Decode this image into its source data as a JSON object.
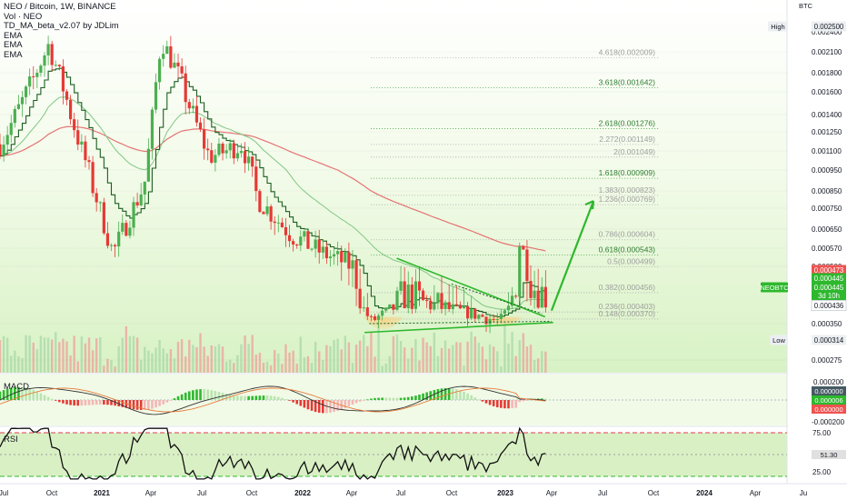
{
  "header": {
    "symbol_line": "NEO / Bitcoin, 1W, BINANCE",
    "indicators": [
      "Vol · NEO",
      "TD_MA_beta_v2.07 by JDLim",
      "EMA",
      "EMA",
      "EMA"
    ]
  },
  "price_axis": {
    "unit": "BTC",
    "ticks": [
      "0.002500",
      "0.002400",
      "0.002100",
      "0.001800",
      "0.001600",
      "0.001400",
      "0.001250",
      "0.001100",
      "0.000950",
      "0.000850",
      "0.000750",
      "0.000650",
      "0.000570",
      "0.000500",
      "0.000436",
      "0.000350",
      "0.000275"
    ],
    "badges": [
      {
        "label": "High",
        "value": "0.002500"
      },
      {
        "label": "",
        "value": "0.000473"
      },
      {
        "label": "",
        "value": "0.000445"
      },
      {
        "label": "NEOBTC",
        "value": "0.000445"
      },
      {
        "label": "",
        "value": "3d 10h"
      },
      {
        "label": "Low",
        "value": "0.000314"
      }
    ]
  },
  "fib_levels": [
    {
      "label": "4.618(0.002009)",
      "color": "#aaaaaa"
    },
    {
      "label": "3.618(0.001642)",
      "color": "#43a047"
    },
    {
      "label": "2.618(0.001276)",
      "color": "#43a047"
    },
    {
      "label": "2.272(0.001149)",
      "color": "#aaaaaa"
    },
    {
      "label": "2(0.001049)",
      "color": "#aaaaaa"
    },
    {
      "label": "1.618(0.000909)",
      "color": "#43a047"
    },
    {
      "label": "1.383(0.000823)",
      "color": "#aaaaaa"
    },
    {
      "label": "1.236(0.000769)",
      "color": "#aaaaaa"
    },
    {
      "label": "0.786(0.000604)",
      "color": "#aaaaaa"
    },
    {
      "label": "0.618(0.000543)",
      "color": "#43a047"
    },
    {
      "label": "0.5(0.000499)",
      "color": "#aaaaaa"
    },
    {
      "label": "0.382(0.000456)",
      "color": "#aaaaaa"
    },
    {
      "label": "0.236(0.000403)",
      "color": "#aaaaaa"
    },
    {
      "label": "0.148(0.000370)",
      "color": "#aaaaaa"
    }
  ],
  "macd": {
    "title": "MACD",
    "ticks": [
      "0.000200",
      "-0.000200"
    ],
    "badges": [
      "0.000000",
      "0.000006",
      "0.000000"
    ]
  },
  "rsi": {
    "title": "RSI",
    "ticks": [
      "75.00",
      "25.00"
    ],
    "badge": "51.30"
  },
  "time_axis": [
    "Jul",
    "Oct",
    "2021",
    "Apr",
    "Jul",
    "Oct",
    "2022",
    "Apr",
    "Jul",
    "Oct",
    "2023",
    "Apr",
    "Jul",
    "Oct",
    "2024",
    "Apr",
    "Ju"
  ],
  "colors": {
    "up": "#26a69a",
    "down": "#ef5350",
    "candle_up": "#4caf50",
    "candle_down": "#e53935",
    "fib_green": "#43a047",
    "arrow": "#2eb82e",
    "ema_red": "#e57373",
    "ema_green": "#81c784"
  },
  "chart_data": {
    "type": "candlestick",
    "title": "NEO / Bitcoin, 1W, BINANCE",
    "ylabel": "BTC",
    "y_scale": "log",
    "ylim": [
      0.000275,
      0.0025
    ],
    "x_range": [
      "2020-06",
      "2024-06"
    ],
    "price_path": [
      {
        "x": "2020-06",
        "y": 0.00115
      },
      {
        "x": "2020-08",
        "y": 0.0017
      },
      {
        "x": "2020-09",
        "y": 0.0022
      },
      {
        "x": "2020-10",
        "y": 0.0016
      },
      {
        "x": "2020-12",
        "y": 0.0008
      },
      {
        "x": "2021-01",
        "y": 0.00055
      },
      {
        "x": "2021-03",
        "y": 0.0009
      },
      {
        "x": "2021-04",
        "y": 0.0023
      },
      {
        "x": "2021-05",
        "y": 0.0018
      },
      {
        "x": "2021-07",
        "y": 0.00105
      },
      {
        "x": "2021-09",
        "y": 0.00115
      },
      {
        "x": "2021-10",
        "y": 0.0008
      },
      {
        "x": "2021-12",
        "y": 0.00063
      },
      {
        "x": "2022-02",
        "y": 0.00055
      },
      {
        "x": "2022-04",
        "y": 0.0005
      },
      {
        "x": "2022-05",
        "y": 0.00036
      },
      {
        "x": "2022-07",
        "y": 0.00045
      },
      {
        "x": "2022-09",
        "y": 0.00043
      },
      {
        "x": "2022-11",
        "y": 0.0004
      },
      {
        "x": "2023-01",
        "y": 0.00036
      },
      {
        "x": "2023-02",
        "y": 0.00048
      },
      {
        "x": "2023-02",
        "y": 0.00063
      },
      {
        "x": "2023-03",
        "y": 0.00047
      },
      {
        "x": "2023-04",
        "y": 0.000445
      }
    ],
    "fibonacci": [
      {
        "ratio": "4.618",
        "price": 0.002009
      },
      {
        "ratio": "3.618",
        "price": 0.001642
      },
      {
        "ratio": "2.618",
        "price": 0.001276
      },
      {
        "ratio": "2.272",
        "price": 0.001149
      },
      {
        "ratio": "2",
        "price": 0.001049
      },
      {
        "ratio": "1.618",
        "price": 0.000909
      },
      {
        "ratio": "1.383",
        "price": 0.000823
      },
      {
        "ratio": "1.236",
        "price": 0.000769
      },
      {
        "ratio": "0.786",
        "price": 0.000604
      },
      {
        "ratio": "0.618",
        "price": 0.000543
      },
      {
        "ratio": "0.5",
        "price": 0.000499
      },
      {
        "ratio": "0.382",
        "price": 0.000456
      },
      {
        "ratio": "0.236",
        "price": 0.000403
      },
      {
        "ratio": "0.148",
        "price": 0.00037
      }
    ],
    "last_price": 0.000445,
    "high": 0.0025,
    "low": 0.000314,
    "rsi_last": 51.3,
    "rsi_bands": [
      75,
      25
    ]
  }
}
